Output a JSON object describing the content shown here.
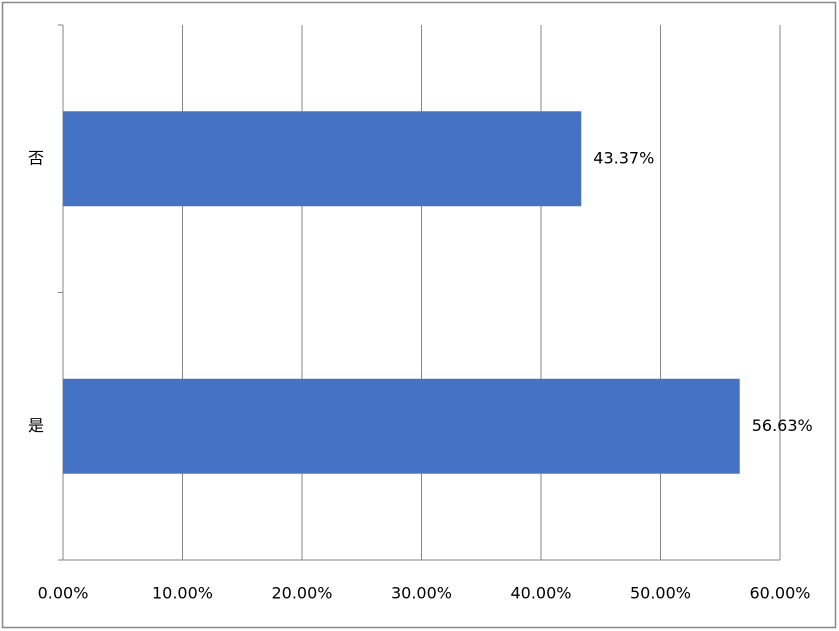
{
  "chart_data": {
    "type": "bar",
    "orientation": "horizontal",
    "categories": [
      "是",
      "否"
    ],
    "values": [
      56.63,
      43.37
    ],
    "value_labels": [
      "56.63%",
      "43.37%"
    ],
    "color": "#4472c4",
    "xlim": [
      0,
      60
    ],
    "xticks": [
      {
        "value": 0,
        "label": "0.00%"
      },
      {
        "value": 10,
        "label": "10.00%"
      },
      {
        "value": 20,
        "label": "20.00%"
      },
      {
        "value": 30,
        "label": "30.00%"
      },
      {
        "value": 40,
        "label": "40.00%"
      },
      {
        "value": 50,
        "label": "50.00%"
      },
      {
        "value": 60,
        "label": "60.00%"
      }
    ],
    "grid": true
  }
}
